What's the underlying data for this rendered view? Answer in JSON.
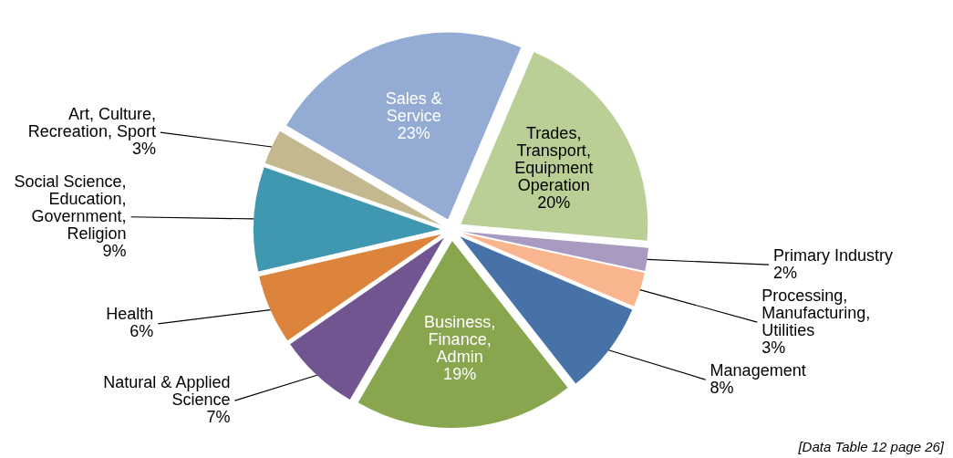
{
  "chart_data": {
    "type": "pie",
    "categories": [
      "Trades, Transport, Equipment Operation",
      "Primary Industry",
      "Processing, Manufacturing, Utilities",
      "Management",
      "Business, Finance, Admin",
      "Natural & Applied Science",
      "Health",
      "Social Science, Education, Government, Religion",
      "Art, Culture, Recreation, Sport",
      "Sales & Service"
    ],
    "values": [
      20,
      2,
      3,
      8,
      19,
      7,
      6,
      9,
      3,
      23
    ],
    "value_labels": [
      "20%",
      "2%",
      "3%",
      "8%",
      "19%",
      "7%",
      "6%",
      "9%",
      "3%",
      "23%"
    ],
    "colors": [
      "#b9cf96",
      "#a99ac2",
      "#f9b58e",
      "#4672a8",
      "#88a64e",
      "#705590",
      "#dc843c",
      "#3f97b0",
      "#c4b98e",
      "#94abd4"
    ],
    "annotations": [
      "[Data Table 12 page 26]"
    ]
  }
}
